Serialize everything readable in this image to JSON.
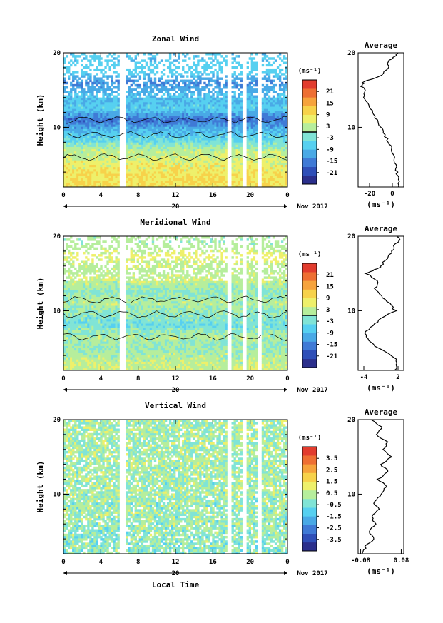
{
  "figure": {
    "date_label": "Nov 2017",
    "date_day": "20",
    "xlabel": "Local Time"
  },
  "chart_data": [
    {
      "type": "heatmap",
      "title": "Zonal Wind",
      "ylabel": "Height (km)",
      "y_ticks": [
        "10",
        "20"
      ],
      "x_ticks": [
        "0",
        "4",
        "8",
        "12",
        "16",
        "20",
        "0"
      ],
      "xlim": [
        0,
        24
      ],
      "ylim": [
        2,
        20
      ],
      "colorbar": {
        "unit": "(ms⁻¹)",
        "ticks": [
          "21",
          "15",
          "9",
          "3",
          "-3",
          "-9",
          "-15",
          "-21"
        ],
        "range": [
          -24,
          24
        ]
      },
      "field": "bands",
      "bands": [
        {
          "h": 3,
          "v": 8
        },
        {
          "h": 5,
          "v": 6
        },
        {
          "h": 7,
          "v": 2
        },
        {
          "h": 8.3,
          "v": -4
        },
        {
          "h": 9.5,
          "v": -8
        },
        {
          "h": 11,
          "v": -15
        },
        {
          "h": 12.5,
          "v": -6
        },
        {
          "h": 14.5,
          "v": -9
        },
        {
          "h": 16,
          "v": -14
        },
        {
          "h": 17.5,
          "v": -7
        },
        {
          "h": 19,
          "v": -9
        }
      ],
      "gaps": [
        [
          6.0,
          6.6
        ],
        [
          17.6,
          17.9
        ],
        [
          19.1,
          19.6
        ],
        [
          20.8,
          21.3
        ]
      ],
      "sparse_above": 14,
      "average": {
        "title": "Average",
        "xlim": [
          -30,
          10
        ],
        "x_ticks": [
          "-20",
          "0"
        ],
        "unit": "(ms⁻¹)",
        "profile": [
          [
            2,
            6
          ],
          [
            3,
            5
          ],
          [
            4,
            4
          ],
          [
            5,
            3
          ],
          [
            6,
            2
          ],
          [
            7,
            0
          ],
          [
            8,
            -3
          ],
          [
            9,
            -7
          ],
          [
            10,
            -10
          ],
          [
            11,
            -14
          ],
          [
            12,
            -17
          ],
          [
            13,
            -20
          ],
          [
            14,
            -25
          ],
          [
            15,
            -24
          ],
          [
            15.5,
            -27
          ],
          [
            16,
            -26
          ],
          [
            17,
            -10
          ],
          [
            18,
            -4
          ],
          [
            19,
            -3
          ],
          [
            19.5,
            2
          ],
          [
            20,
            5
          ]
        ]
      }
    },
    {
      "type": "heatmap",
      "title": "Meridional Wind",
      "ylabel": "Height (km)",
      "y_ticks": [
        "10",
        "20"
      ],
      "x_ticks": [
        "0",
        "4",
        "8",
        "12",
        "16",
        "20",
        "0"
      ],
      "xlim": [
        0,
        24
      ],
      "ylim": [
        2,
        20
      ],
      "colorbar": {
        "unit": "(ms⁻¹)",
        "ticks": [
          "21",
          "15",
          "9",
          "3",
          "-3",
          "-9",
          "-15",
          "-21"
        ],
        "range": [
          -24,
          24
        ]
      },
      "field": "bands",
      "bands": [
        {
          "h": 3,
          "v": 3
        },
        {
          "h": 5,
          "v": 0
        },
        {
          "h": 6.5,
          "v": 2
        },
        {
          "h": 8,
          "v": -3
        },
        {
          "h": 9.5,
          "v": -1
        },
        {
          "h": 11,
          "v": 2
        },
        {
          "h": 12.5,
          "v": -1
        },
        {
          "h": 14,
          "v": 3
        },
        {
          "h": 15.5,
          "v": 1
        },
        {
          "h": 17.5,
          "v": 4
        },
        {
          "h": 19,
          "v": -1
        }
      ],
      "gaps": [
        [
          6.0,
          6.6
        ],
        [
          17.6,
          17.9
        ],
        [
          19.1,
          19.6
        ],
        [
          20.8,
          21.3
        ]
      ],
      "sparse_above": 14,
      "average": {
        "title": "Average",
        "xlim": [
          -5,
          3
        ],
        "x_ticks": [
          "-4",
          "2"
        ],
        "unit": "(ms⁻¹)",
        "profile": [
          [
            2,
            1.5
          ],
          [
            3,
            2
          ],
          [
            4,
            1
          ],
          [
            5,
            -1.5
          ],
          [
            6,
            -3
          ],
          [
            7,
            -4
          ],
          [
            8,
            -2.5
          ],
          [
            9,
            -1
          ],
          [
            10,
            1.5
          ],
          [
            11,
            0.5
          ],
          [
            12,
            -1
          ],
          [
            13,
            -2
          ],
          [
            14,
            -1.5
          ],
          [
            15,
            -3.5
          ],
          [
            15.5,
            -2
          ],
          [
            16,
            -1
          ],
          [
            17,
            0
          ],
          [
            18,
            1
          ],
          [
            19,
            1.5
          ],
          [
            19.5,
            2.5
          ],
          [
            20,
            2
          ]
        ]
      }
    },
    {
      "type": "heatmap",
      "title": "Vertical Wind",
      "ylabel": "Height (km)",
      "y_ticks": [
        "10",
        "20"
      ],
      "x_ticks": [
        "0",
        "4",
        "8",
        "12",
        "16",
        "20",
        "0"
      ],
      "xlim": [
        0,
        24
      ],
      "ylim": [
        2,
        20
      ],
      "colorbar": {
        "unit": "(ms⁻¹)",
        "ticks": [
          "3.5",
          "2.5",
          "1.5",
          "0.5",
          "-0.5",
          "-1.5",
          "-2.5",
          "-3.5"
        ],
        "range": [
          -4,
          4
        ]
      },
      "field": "noise",
      "bands": [
        {
          "h": 3,
          "v": -0.2
        },
        {
          "h": 10,
          "v": 0.2
        },
        {
          "h": 17,
          "v": 0.3
        }
      ],
      "gaps": [
        [
          6.0,
          6.6
        ],
        [
          17.6,
          17.9
        ],
        [
          19.1,
          19.6
        ],
        [
          20.8,
          21.3
        ]
      ],
      "sparse_above": 21,
      "average": {
        "title": "Average",
        "xlim": [
          -0.09,
          0.09
        ],
        "x_ticks": [
          "-0.08",
          "0.08"
        ],
        "unit": "(ms⁻¹)",
        "profile": [
          [
            2,
            -0.07
          ],
          [
            3,
            -0.06
          ],
          [
            4,
            -0.03
          ],
          [
            5,
            -0.05
          ],
          [
            6,
            -0.02
          ],
          [
            7,
            -0.04
          ],
          [
            8,
            -0.01
          ],
          [
            9,
            -0.03
          ],
          [
            10,
            0.0
          ],
          [
            11,
            0.02
          ],
          [
            12,
            -0.01
          ],
          [
            13,
            0.03
          ],
          [
            14,
            0.0
          ],
          [
            15,
            0.04
          ],
          [
            16,
            0.01
          ],
          [
            17,
            0.03
          ],
          [
            18,
            -0.02
          ],
          [
            19,
            0.0
          ],
          [
            20,
            -0.04
          ]
        ]
      }
    }
  ]
}
